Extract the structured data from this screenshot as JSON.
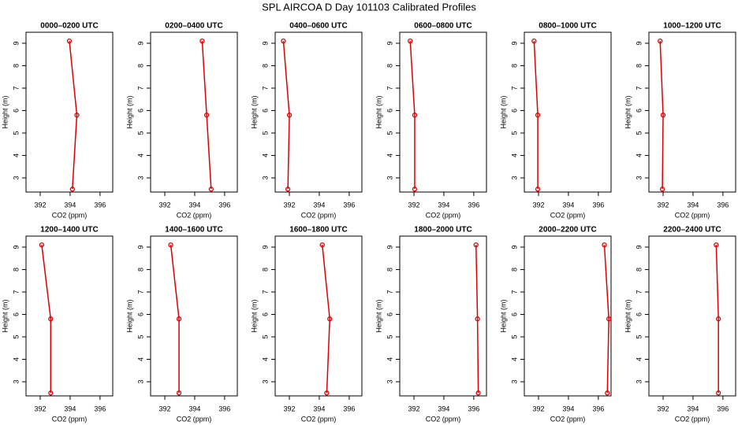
{
  "title": "SPL AIRCOA D  Day 101103  Calibrated Profiles",
  "chart_data": [
    {
      "type": "line",
      "title": "0000–0200 UTC",
      "xlabel": "CO2 (ppm)",
      "ylabel": "Height (m)",
      "color": "#dd0000",
      "heights": [
        2.5,
        5.8,
        9.1
      ],
      "values": [
        394.15,
        394.45,
        393.95
      ],
      "xlim": [
        391.05,
        396.85
      ],
      "ylim": [
        2.37,
        9.49
      ],
      "xticks": [
        392,
        394,
        396
      ],
      "yticks": [
        3,
        4,
        5,
        6,
        7,
        8,
        9
      ]
    },
    {
      "type": "line",
      "title": "0200–0400 UTC",
      "xlabel": "CO2 (ppm)",
      "ylabel": "Height (m)",
      "color": "#dd0000",
      "heights": [
        2.5,
        5.8,
        9.1
      ],
      "values": [
        395.1,
        394.8,
        394.5
      ],
      "xlim": [
        391.05,
        396.85
      ],
      "ylim": [
        2.37,
        9.49
      ],
      "xticks": [
        392,
        394,
        396
      ],
      "yticks": [
        3,
        4,
        5,
        6,
        7,
        8,
        9
      ]
    },
    {
      "type": "line",
      "title": "0400–0600 UTC",
      "xlabel": "CO2 (ppm)",
      "ylabel": "Height (m)",
      "color": "#dd0000",
      "heights": [
        2.5,
        5.8,
        9.1
      ],
      "values": [
        391.9,
        392.0,
        391.6
      ],
      "xlim": [
        391.05,
        396.85
      ],
      "ylim": [
        2.37,
        9.49
      ],
      "xticks": [
        392,
        394,
        396
      ],
      "yticks": [
        3,
        4,
        5,
        6,
        7,
        8,
        9
      ]
    },
    {
      "type": "line",
      "title": "0600–0800 UTC",
      "xlabel": "CO2 (ppm)",
      "ylabel": "Height (m)",
      "color": "#dd0000",
      "heights": [
        2.5,
        5.8,
        9.1
      ],
      "values": [
        392.05,
        392.05,
        391.75
      ],
      "xlim": [
        391.05,
        396.85
      ],
      "ylim": [
        2.37,
        9.49
      ],
      "xticks": [
        392,
        394,
        396
      ],
      "yticks": [
        3,
        4,
        5,
        6,
        7,
        8,
        9
      ]
    },
    {
      "type": "line",
      "title": "0800–1000 UTC",
      "xlabel": "CO2 (ppm)",
      "ylabel": "Height (m)",
      "color": "#dd0000",
      "heights": [
        2.5,
        5.8,
        9.1
      ],
      "values": [
        391.95,
        391.95,
        391.7
      ],
      "xlim": [
        391.05,
        396.85
      ],
      "ylim": [
        2.37,
        9.49
      ],
      "xticks": [
        392,
        394,
        396
      ],
      "yticks": [
        3,
        4,
        5,
        6,
        7,
        8,
        9
      ]
    },
    {
      "type": "line",
      "title": "1000–1200 UTC",
      "xlabel": "CO2 (ppm)",
      "ylabel": "Height (m)",
      "color": "#dd0000",
      "heights": [
        2.5,
        5.8,
        9.1
      ],
      "values": [
        391.95,
        392.0,
        391.8
      ],
      "xlim": [
        391.05,
        396.85
      ],
      "ylim": [
        2.37,
        9.49
      ],
      "xticks": [
        392,
        394,
        396
      ],
      "yticks": [
        3,
        4,
        5,
        6,
        7,
        8,
        9
      ]
    },
    {
      "type": "line",
      "title": "1200–1400 UTC",
      "xlabel": "CO2 (ppm)",
      "ylabel": "Height (m)",
      "color": "#dd0000",
      "heights": [
        2.5,
        5.8,
        9.1
      ],
      "values": [
        392.7,
        392.7,
        392.1
      ],
      "xlim": [
        391.05,
        396.85
      ],
      "ylim": [
        2.37,
        9.49
      ],
      "xticks": [
        392,
        394,
        396
      ],
      "yticks": [
        3,
        4,
        5,
        6,
        7,
        8,
        9
      ]
    },
    {
      "type": "line",
      "title": "1400–1600 UTC",
      "xlabel": "CO2 (ppm)",
      "ylabel": "Height (m)",
      "color": "#dd0000",
      "heights": [
        2.5,
        5.8,
        9.1
      ],
      "values": [
        392.95,
        392.95,
        392.4
      ],
      "xlim": [
        391.05,
        396.85
      ],
      "ylim": [
        2.37,
        9.49
      ],
      "xticks": [
        392,
        394,
        396
      ],
      "yticks": [
        3,
        4,
        5,
        6,
        7,
        8,
        9
      ]
    },
    {
      "type": "line",
      "title": "1600–1800 UTC",
      "xlabel": "CO2 (ppm)",
      "ylabel": "Height (m)",
      "color": "#dd0000",
      "heights": [
        2.5,
        5.8,
        9.1
      ],
      "values": [
        394.5,
        394.7,
        394.2
      ],
      "xlim": [
        391.05,
        396.85
      ],
      "ylim": [
        2.37,
        9.49
      ],
      "xticks": [
        392,
        394,
        396
      ],
      "yticks": [
        3,
        4,
        5,
        6,
        7,
        8,
        9
      ]
    },
    {
      "type": "line",
      "title": "1800–2000 UTC",
      "xlabel": "CO2 (ppm)",
      "ylabel": "Height (m)",
      "color": "#dd0000",
      "heights": [
        2.5,
        5.8,
        9.1
      ],
      "values": [
        396.3,
        396.25,
        396.15
      ],
      "xlim": [
        391.05,
        396.85
      ],
      "ylim": [
        2.37,
        9.49
      ],
      "xticks": [
        392,
        394,
        396
      ],
      "yticks": [
        3,
        4,
        5,
        6,
        7,
        8,
        9
      ]
    },
    {
      "type": "line",
      "title": "2000–2200 UTC",
      "xlabel": "CO2 (ppm)",
      "ylabel": "Height (m)",
      "color": "#dd0000",
      "heights": [
        2.5,
        5.8,
        9.1
      ],
      "values": [
        396.6,
        396.7,
        396.4
      ],
      "xlim": [
        391.05,
        396.85
      ],
      "ylim": [
        2.37,
        9.49
      ],
      "xticks": [
        392,
        394,
        396
      ],
      "yticks": [
        3,
        4,
        5,
        6,
        7,
        8,
        9
      ]
    },
    {
      "type": "line",
      "title": "2200–2400 UTC",
      "xlabel": "CO2 (ppm)",
      "ylabel": "Height (m)",
      "color": "#dd0000",
      "heights": [
        2.5,
        5.8,
        9.1
      ],
      "values": [
        395.7,
        395.7,
        395.55
      ],
      "xlim": [
        391.05,
        396.85
      ],
      "ylim": [
        2.37,
        9.49
      ],
      "xticks": [
        392,
        394,
        396
      ],
      "yticks": [
        3,
        4,
        5,
        6,
        7,
        8,
        9
      ]
    }
  ]
}
